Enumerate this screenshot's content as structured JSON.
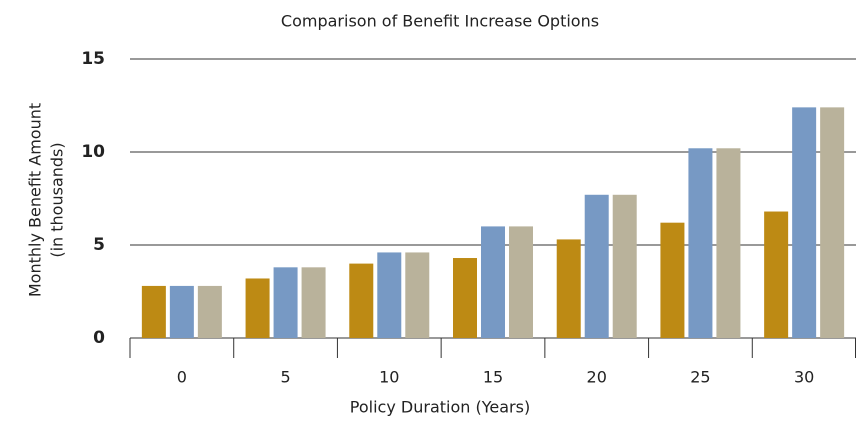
{
  "chart_data": {
    "type": "bar",
    "title": "Comparison of Benefit Increase Options",
    "xlabel": "Policy Duration (Years)",
    "ylabel": [
      "Monthly Benefit Amount",
      "(in thousands)"
    ],
    "categories": [
      "0",
      "5",
      "10",
      "15",
      "20",
      "25",
      "30"
    ],
    "series": [
      {
        "color": "#bd8a14",
        "values": [
          2.8,
          3.2,
          4.0,
          4.3,
          5.3,
          6.2,
          6.8
        ]
      },
      {
        "color": "#7799c4",
        "values": [
          2.8,
          3.8,
          4.6,
          6.0,
          7.7,
          10.2,
          12.4
        ]
      },
      {
        "color": "#b9b29b",
        "values": [
          2.8,
          3.8,
          4.6,
          6.0,
          7.7,
          10.2,
          12.4
        ]
      }
    ],
    "ylim": [
      0,
      15
    ],
    "yticks": [
      0,
      5,
      10,
      15
    ],
    "grid": true
  }
}
